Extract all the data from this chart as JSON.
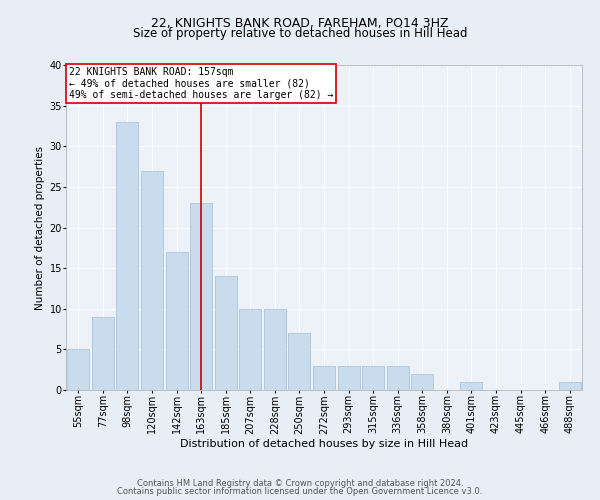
{
  "title1": "22, KNIGHTS BANK ROAD, FAREHAM, PO14 3HZ",
  "title2": "Size of property relative to detached houses in Hill Head",
  "xlabel": "Distribution of detached houses by size in Hill Head",
  "ylabel": "Number of detached properties",
  "categories": [
    "55sqm",
    "77sqm",
    "98sqm",
    "120sqm",
    "142sqm",
    "163sqm",
    "185sqm",
    "207sqm",
    "228sqm",
    "250sqm",
    "272sqm",
    "293sqm",
    "315sqm",
    "336sqm",
    "358sqm",
    "380sqm",
    "401sqm",
    "423sqm",
    "445sqm",
    "466sqm",
    "488sqm"
  ],
  "values": [
    5,
    9,
    33,
    27,
    17,
    23,
    14,
    10,
    10,
    7,
    3,
    3,
    3,
    3,
    2,
    0,
    1,
    0,
    0,
    0,
    1
  ],
  "bar_color": "#c9dced",
  "bar_edge_color": "#a0bfd8",
  "vline_x": 5,
  "vline_color": "#cc0000",
  "annotation_text": "22 KNIGHTS BANK ROAD: 157sqm\n← 49% of detached houses are smaller (82)\n49% of semi-detached houses are larger (82) →",
  "annotation_box_color": "white",
  "annotation_box_edge_color": "#cc0000",
  "ylim": [
    0,
    40
  ],
  "yticks": [
    0,
    5,
    10,
    15,
    20,
    25,
    30,
    35,
    40
  ],
  "footer1": "Contains HM Land Registry data © Crown copyright and database right 2024.",
  "footer2": "Contains public sector information licensed under the Open Government Licence v3.0.",
  "bg_color": "#e8eef5",
  "plot_bg_color": "#edf2f8",
  "grid_color": "white",
  "title1_fontsize": 9,
  "title2_fontsize": 8.5,
  "xlabel_fontsize": 8,
  "ylabel_fontsize": 7.5,
  "tick_fontsize": 7,
  "annotation_fontsize": 7,
  "footer_fontsize": 6
}
